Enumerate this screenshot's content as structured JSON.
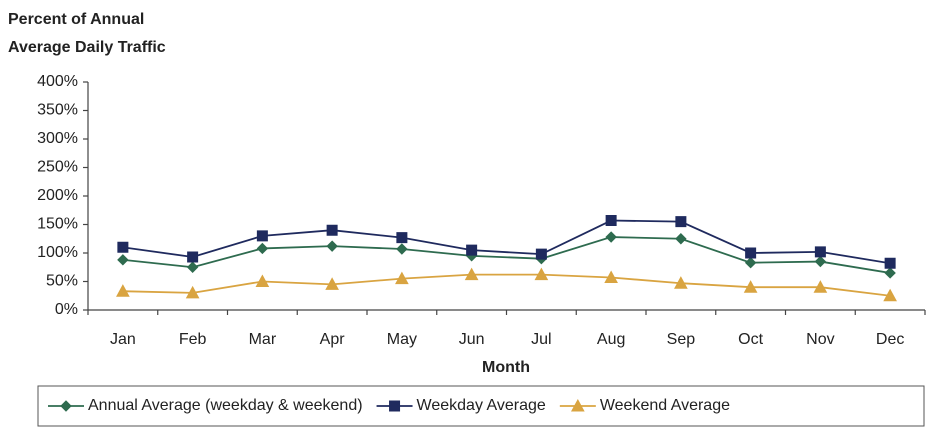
{
  "chart_data": {
    "type": "line",
    "title_lines": [
      "Percent of Annual",
      "Average Daily Traffic"
    ],
    "x_label": "Month",
    "categories": [
      "Jan",
      "Feb",
      "Mar",
      "Apr",
      "May",
      "Jun",
      "Jul",
      "Aug",
      "Sep",
      "Oct",
      "Nov",
      "Dec"
    ],
    "series": [
      {
        "name": "Annual Average (weekday & weekend)",
        "color": "#2e6b4f",
        "marker": "diamond",
        "values": [
          88,
          75,
          108,
          112,
          107,
          95,
          90,
          128,
          125,
          83,
          85,
          65
        ]
      },
      {
        "name": "Weekday Average",
        "color": "#1f2a5e",
        "marker": "square",
        "values": [
          110,
          93,
          130,
          140,
          127,
          105,
          98,
          157,
          155,
          100,
          102,
          82
        ]
      },
      {
        "name": "Weekend Average",
        "color": "#d9a441",
        "marker": "triangle",
        "values": [
          33,
          30,
          50,
          45,
          55,
          62,
          62,
          57,
          47,
          40,
          40,
          25
        ]
      }
    ],
    "ylim": [
      0,
      400
    ],
    "yticks": [
      {
        "value": 0,
        "label": "0%"
      },
      {
        "value": 50,
        "label": "50%"
      },
      {
        "value": 100,
        "label": "100%"
      },
      {
        "value": 150,
        "label": "150%"
      },
      {
        "value": 200,
        "label": "200%"
      },
      {
        "value": 250,
        "label": "250%"
      },
      {
        "value": 300,
        "label": "300%"
      },
      {
        "value": 350,
        "label": "350%"
      },
      {
        "value": 400,
        "label": "400%"
      }
    ],
    "grid": false,
    "legend": "bottom"
  }
}
